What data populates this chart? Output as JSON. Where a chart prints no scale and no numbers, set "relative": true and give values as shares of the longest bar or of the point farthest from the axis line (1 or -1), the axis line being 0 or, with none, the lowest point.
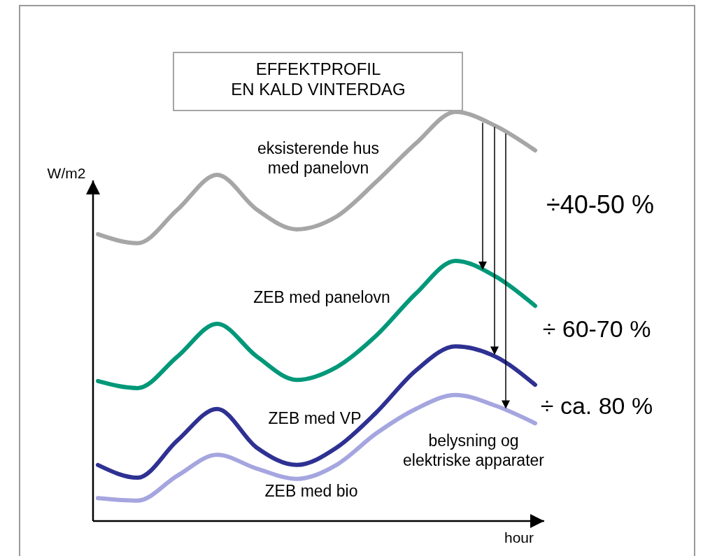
{
  "chart_data": {
    "type": "line",
    "relative": true,
    "title": "EFFEKTPROFIL\nEN KALD VINTERDAG",
    "xlabel": "hour",
    "ylabel": "W/m2",
    "categories": [
      null,
      null,
      null,
      null,
      null,
      null,
      null,
      null,
      null,
      null,
      null,
      null
    ],
    "grid": false,
    "marker": "none",
    "line_style": "solid",
    "series": [
      {
        "name": "eksisterende hus\nmed panelovn",
        "color": "#a6a6a6",
        "values": [
          0.701,
          0.679,
          0.761,
          0.846,
          0.761,
          0.713,
          0.744,
          0.829,
          0.923,
          1,
          0.966,
          0.906
        ]
      },
      {
        "name": "ZEB med panelovn",
        "color": "#009879",
        "values": [
          0.342,
          0.325,
          0.402,
          0.482,
          0.402,
          0.345,
          0.376,
          0.453,
          0.556,
          0.636,
          0.598,
          0.526
        ]
      },
      {
        "name": "ZEB med VP",
        "color": "#2e3192",
        "values": [
          0.137,
          0.106,
          0.197,
          0.274,
          0.179,
          0.137,
          0.179,
          0.265,
          0.368,
          0.427,
          0.402,
          0.333
        ]
      },
      {
        "name": "ZEB med bio",
        "color": "#a5a5e0",
        "values": [
          0.056,
          0.05,
          0.111,
          0.162,
          0.128,
          0.103,
          0.137,
          0.214,
          0.274,
          0.308,
          0.282,
          0.239
        ]
      }
    ],
    "annotations": [
      "÷40-50 %",
      "÷ 60-70 %",
      "÷ ca. 80 %",
      "belysning og\nelektriske apparater"
    ]
  }
}
